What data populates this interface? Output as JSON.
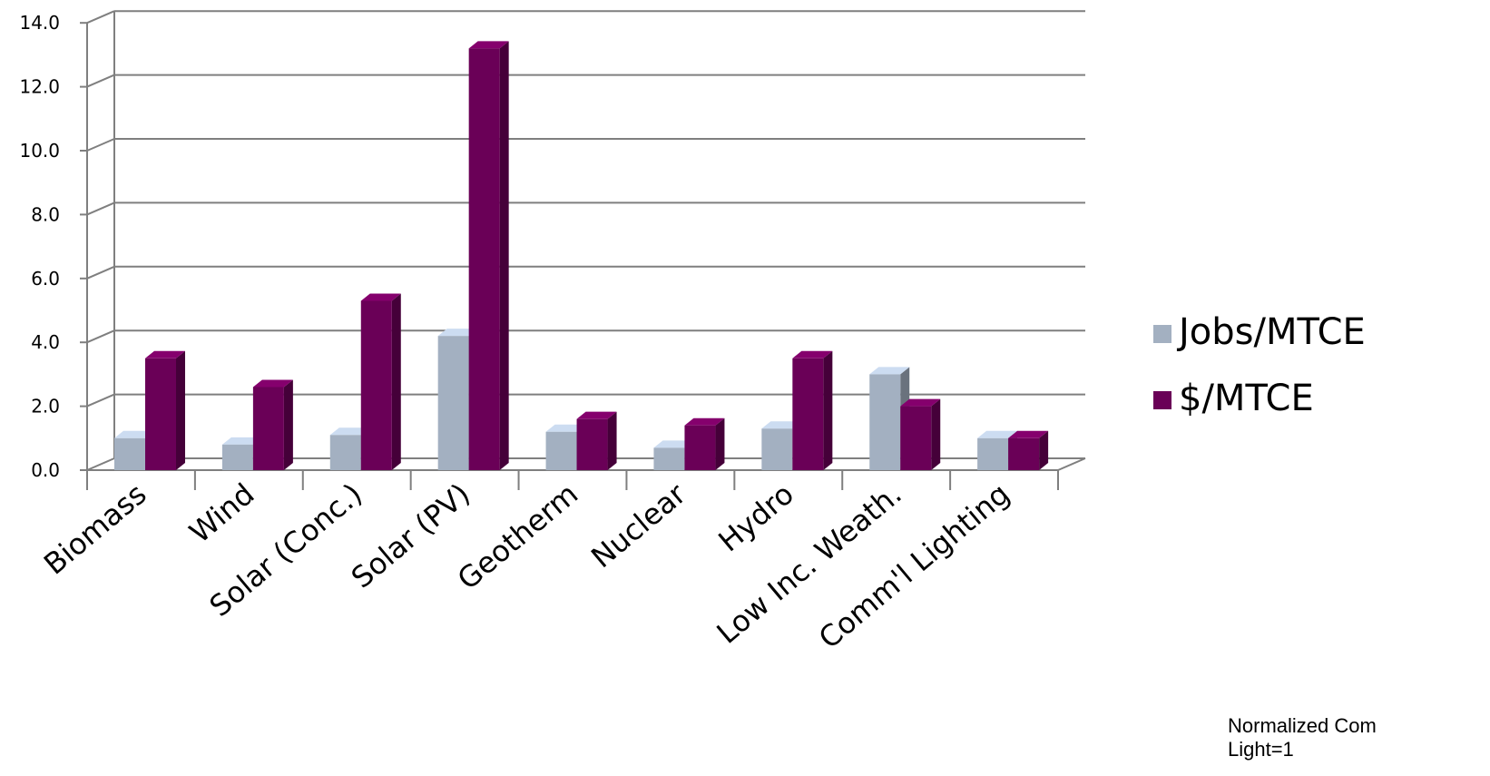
{
  "chart_data": {
    "type": "bar",
    "style": "3d-clustered-column",
    "categories": [
      "Biomass",
      "Wind",
      "Solar (Conc.)",
      "Solar (PV)",
      "Geotherm",
      "Nuclear",
      "Hydro",
      "Low Inc. Weath.",
      "Comm'l Lighting"
    ],
    "series": [
      {
        "name": "Jobs/MTCE",
        "color": "#a3b0c1",
        "values": [
          1.0,
          0.8,
          1.1,
          4.2,
          1.2,
          0.7,
          1.3,
          3.0,
          1.0
        ]
      },
      {
        "name": "$/MTCE",
        "color": "#6a0057",
        "values": [
          3.5,
          2.6,
          5.3,
          13.2,
          1.6,
          1.4,
          3.5,
          2.0,
          1.0
        ]
      }
    ],
    "ylim": [
      0,
      14
    ],
    "yticks": [
      "0.0",
      "2.0",
      "4.0",
      "6.0",
      "8.0",
      "10.0",
      "12.0",
      "14.0"
    ],
    "grid": true,
    "legend": "right"
  },
  "note": {
    "line1": "Normalized Com",
    "line2": "Light=1"
  }
}
